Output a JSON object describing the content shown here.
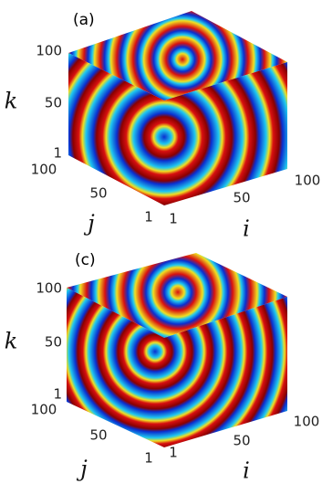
{
  "panels": [
    {
      "label": "(a)",
      "k_axis": {
        "label": "k",
        "ticks": [
          "100",
          "50",
          "1"
        ]
      },
      "j_axis": {
        "label": "j",
        "ticks": [
          "100",
          "50",
          "1"
        ]
      },
      "i_axis": {
        "label": "i",
        "ticks": [
          "1",
          "50",
          "100"
        ]
      }
    },
    {
      "label": "(c)",
      "k_axis": {
        "label": "k",
        "ticks": [
          "100",
          "50",
          "1"
        ]
      },
      "j_axis": {
        "label": "j",
        "ticks": [
          "100",
          "50",
          "1"
        ]
      },
      "i_axis": {
        "label": "i",
        "ticks": [
          "1",
          "50",
          "100"
        ]
      }
    }
  ]
}
